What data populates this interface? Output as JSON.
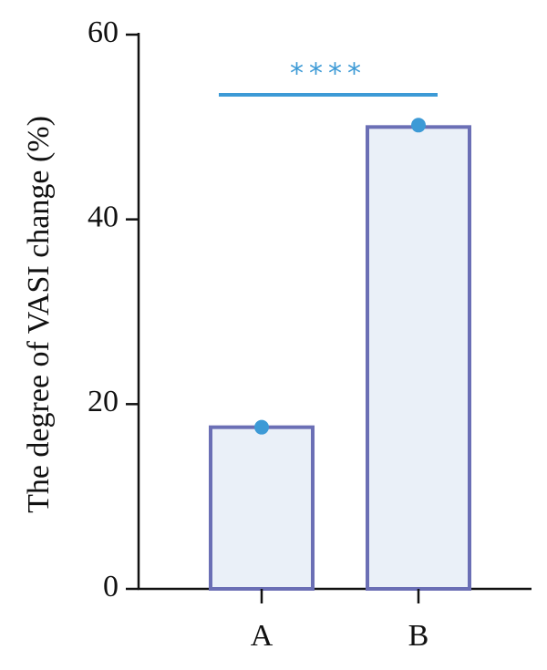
{
  "chart_data": {
    "type": "bar",
    "y_label": "The degree of VASI change (%)",
    "categories": [
      "A",
      "B"
    ],
    "values": [
      17.5,
      50
    ],
    "points": [
      17.5,
      50.2
    ],
    "color": "#eaf0f8",
    "edge_color": "#6b6fb5",
    "point_color": "#3d9ad6",
    "annotation": "****",
    "annotation_color": "#3d9ad6",
    "ylim": [
      0,
      60
    ],
    "yticks": [
      0,
      20,
      40,
      60
    ],
    "grid": false
  }
}
